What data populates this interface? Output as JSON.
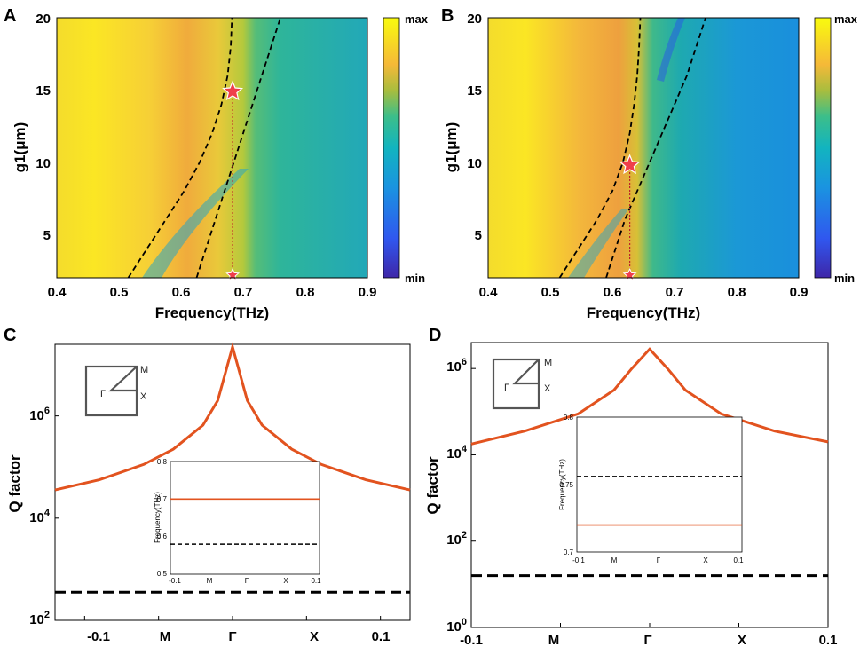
{
  "colors": {
    "accent": "#e2531f",
    "dashed": "#000000",
    "star": "#ef3e4a",
    "marker_line": "#c0202a"
  },
  "chart_data": [
    {
      "id": "A",
      "panel_label": "A",
      "type": "heatmap",
      "xlabel": "Frequency(THz)",
      "ylabel": "g1(μm)",
      "xlim": [
        0.4,
        0.9
      ],
      "ylim": [
        2,
        20
      ],
      "xticks": [
        "0.4",
        "0.5",
        "0.6",
        "0.7",
        "0.8",
        "0.9"
      ],
      "yticks": [
        "5",
        "10",
        "15",
        "20"
      ],
      "colorbar": {
        "max_label": "max",
        "min_label": "min"
      },
      "dashed_curves": [
        {
          "name": "band-1",
          "x": [
            0.515,
            0.545,
            0.575,
            0.605,
            0.63,
            0.65,
            0.665,
            0.675,
            0.68,
            0.682
          ],
          "y": [
            2,
            4,
            6,
            8,
            10,
            12,
            14,
            16,
            18,
            20
          ]
        },
        {
          "name": "band-2",
          "x": [
            0.625,
            0.64,
            0.655,
            0.67,
            0.685,
            0.7,
            0.715,
            0.73,
            0.745,
            0.76
          ],
          "y": [
            2,
            4,
            6,
            8,
            10,
            12,
            14,
            16,
            18,
            20
          ]
        }
      ],
      "star": {
        "x": 0.683,
        "y": 14.9
      },
      "star_base": {
        "x": 0.683,
        "y": 2
      }
    },
    {
      "id": "B",
      "panel_label": "B",
      "type": "heatmap",
      "xlabel": "Frequency(THz)",
      "ylabel": "g1(μm)",
      "xlim": [
        0.4,
        0.9
      ],
      "ylim": [
        2,
        20
      ],
      "xticks": [
        "0.4",
        "0.5",
        "0.6",
        "0.7",
        "0.8",
        "0.9"
      ],
      "yticks": [
        "5",
        "10",
        "15",
        "20"
      ],
      "colorbar": {
        "max_label": "max",
        "min_label": "min"
      },
      "dashed_curves": [
        {
          "name": "band-1",
          "x": [
            0.515,
            0.545,
            0.575,
            0.6,
            0.617,
            0.628,
            0.635,
            0.64,
            0.643,
            0.645
          ],
          "y": [
            2,
            4,
            6,
            8,
            10,
            12,
            14,
            16,
            18,
            20
          ]
        },
        {
          "name": "band-2",
          "x": [
            0.59,
            0.605,
            0.62,
            0.64,
            0.66,
            0.68,
            0.7,
            0.72,
            0.735,
            0.75
          ],
          "y": [
            2,
            4,
            6,
            8,
            10,
            12,
            14,
            16,
            18,
            20
          ]
        }
      ],
      "star": {
        "x": 0.628,
        "y": 9.8
      },
      "star_base": {
        "x": 0.628,
        "y": 2
      }
    },
    {
      "id": "C",
      "panel_label": "C",
      "type": "line",
      "yscale": "log",
      "ylabel": "Q factor",
      "xlim": [
        -0.12,
        0.12
      ],
      "ylim_exp": [
        2,
        7.4
      ],
      "xtick_pos": [
        -0.1,
        -0.05,
        0,
        0.05,
        0.1
      ],
      "xticks": [
        "-0.1",
        "M",
        "Γ",
        "X",
        "0.1"
      ],
      "ytick_exps": [
        2,
        4,
        6
      ],
      "series": [
        {
          "name": "Q-solid",
          "x": [
            -0.12,
            -0.09,
            -0.06,
            -0.04,
            -0.02,
            -0.01,
            0,
            0.01,
            0.02,
            0.04,
            0.06,
            0.09,
            0.12
          ],
          "log10y": [
            4.55,
            4.75,
            5.05,
            5.35,
            5.82,
            6.3,
            7.35,
            6.3,
            5.82,
            5.35,
            5.05,
            4.75,
            4.55
          ]
        },
        {
          "name": "Q-dashed",
          "x": [
            -0.12,
            0.12
          ],
          "log10y": [
            2.55,
            2.55
          ]
        }
      ],
      "brillouin_inset": {
        "M": "M",
        "X": "X",
        "G": "Γ"
      },
      "inset": {
        "ylabel": "Frequency(THz)",
        "ylim": [
          0.5,
          0.8
        ],
        "yticks": [
          "0.5",
          "0.6",
          "0.7",
          "0.8"
        ],
        "xticks": [
          "-0.1",
          "M",
          "Γ",
          "X",
          "0.1"
        ],
        "solid": 0.7,
        "dashed": 0.58
      }
    },
    {
      "id": "D",
      "panel_label": "D",
      "type": "line",
      "yscale": "log",
      "ylabel": "Q factor",
      "xlim": [
        -0.1,
        0.1
      ],
      "ylim_exp": [
        0,
        6.6
      ],
      "xtick_pos": [
        -0.1,
        -0.05,
        0,
        0.05,
        0.1
      ],
      "xticks": [
        "-0.1",
        "M",
        "Γ",
        "X",
        "0.1"
      ],
      "ytick_exps": [
        0,
        2,
        4,
        6
      ],
      "series": [
        {
          "name": "Q-solid",
          "x": [
            -0.1,
            -0.07,
            -0.04,
            -0.02,
            -0.01,
            0,
            0.01,
            0.02,
            0.04,
            0.07,
            0.1
          ],
          "log10y": [
            4.25,
            4.55,
            4.95,
            5.5,
            6.0,
            6.45,
            6.0,
            5.5,
            4.95,
            4.55,
            4.3
          ]
        },
        {
          "name": "Q-dashed",
          "x": [
            -0.1,
            0.1
          ],
          "log10y": [
            1.2,
            1.2
          ]
        }
      ],
      "brillouin_inset": {
        "M": "M",
        "X": "X",
        "G": "Γ"
      },
      "inset": {
        "ylabel": "Frequency(THz)",
        "ylim": [
          0.7,
          0.8
        ],
        "yticks": [
          "0.7",
          "0.75",
          "0.8"
        ],
        "xticks": [
          "-0.1",
          "M",
          "Γ",
          "X",
          "0.1"
        ],
        "solid": 0.72,
        "dashed": 0.756
      }
    }
  ]
}
